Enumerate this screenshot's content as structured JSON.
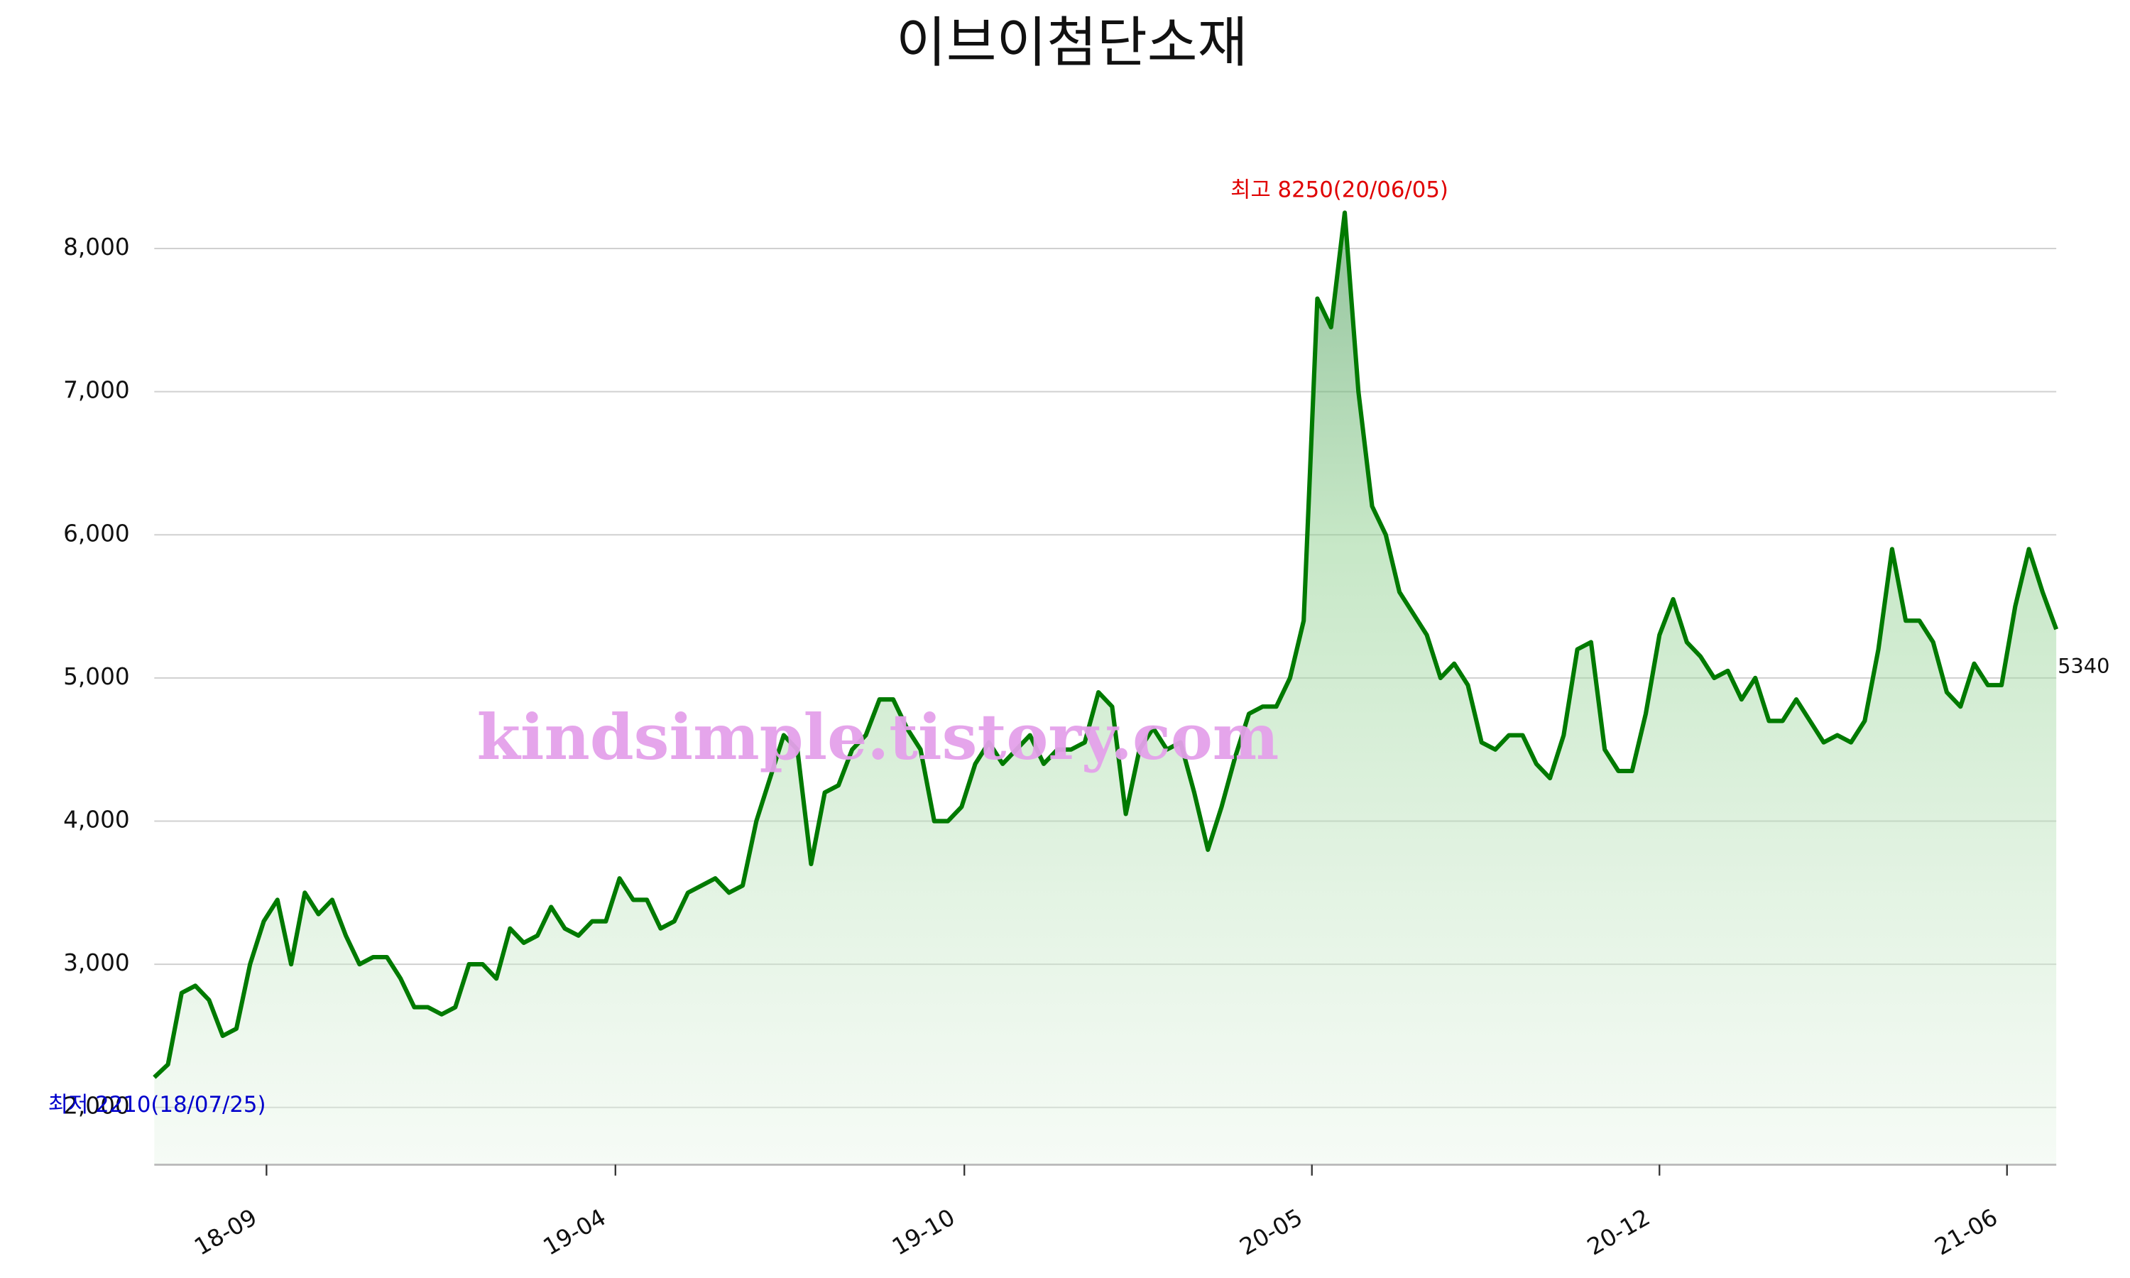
{
  "chart_data": {
    "type": "line",
    "title": "이브이첨단소재",
    "series": [
      {
        "name": "이브이첨단소재",
        "color": "#007a00",
        "values": [
          2210,
          2300,
          2800,
          2850,
          2750,
          2500,
          2550,
          3000,
          3300,
          3450,
          3000,
          3500,
          3350,
          3450,
          3200,
          3000,
          3050,
          3050,
          2900,
          2700,
          2700,
          2650,
          2700,
          3000,
          3000,
          2900,
          3250,
          3150,
          3200,
          3400,
          3250,
          3200,
          3300,
          3300,
          3600,
          3450,
          3450,
          3250,
          3300,
          3500,
          3550,
          3600,
          3500,
          3550,
          4000,
          4300,
          4600,
          4500,
          3700,
          4200,
          4250,
          4500,
          4600,
          4850,
          4850,
          4650,
          4500,
          4000,
          4000,
          4100,
          4400,
          4550,
          4400,
          4500,
          4600,
          4400,
          4500,
          4500,
          4550,
          4900,
          4800,
          4050,
          4500,
          4650,
          4500,
          4550,
          4200,
          3800,
          4100,
          4450,
          4750,
          4800,
          4800,
          5000,
          5400,
          7650,
          7450,
          8250,
          7000,
          6200,
          6000,
          5600,
          5450,
          5300,
          5000,
          5100,
          4950,
          4550,
          4500,
          4600,
          4600,
          4400,
          4300,
          4600,
          5200,
          5250,
          4500,
          4350,
          4350,
          4750,
          5300,
          5550,
          5250,
          5150,
          5000,
          5050,
          4850,
          5000,
          4700,
          4700,
          4850,
          4700,
          4550,
          4600,
          4550,
          4700,
          5200,
          5900,
          5400,
          5400,
          5250,
          4900,
          4800,
          5100,
          4950,
          4950,
          5500,
          5900,
          5600,
          5340
        ]
      }
    ],
    "xlim": [
      0,
      139
    ],
    "xticks": [
      {
        "value": 8.2,
        "label": "18-09"
      },
      {
        "value": 33.7,
        "label": "19-04"
      },
      {
        "value": 59.2,
        "label": "19-10"
      },
      {
        "value": 84.6,
        "label": "20-05"
      },
      {
        "value": 110,
        "label": "20-12"
      },
      {
        "value": 135.4,
        "label": "21-06"
      }
    ],
    "ylim": [
      1600,
      8600
    ],
    "yticks": [
      {
        "value": 2000,
        "label": "2,000"
      },
      {
        "value": 3000,
        "label": "3,000"
      },
      {
        "value": 4000,
        "label": "4,000"
      },
      {
        "value": 5000,
        "label": "5,000"
      },
      {
        "value": 6000,
        "label": "6,000"
      },
      {
        "value": 7000,
        "label": "7,000"
      },
      {
        "value": 8000,
        "label": "8,000"
      }
    ],
    "grid": true,
    "annotations": {
      "high": "최고 8250(20/06/05)",
      "low": "최저 2210(18/07/25)",
      "watermark": "kindsimple.tistory.com"
    }
  }
}
